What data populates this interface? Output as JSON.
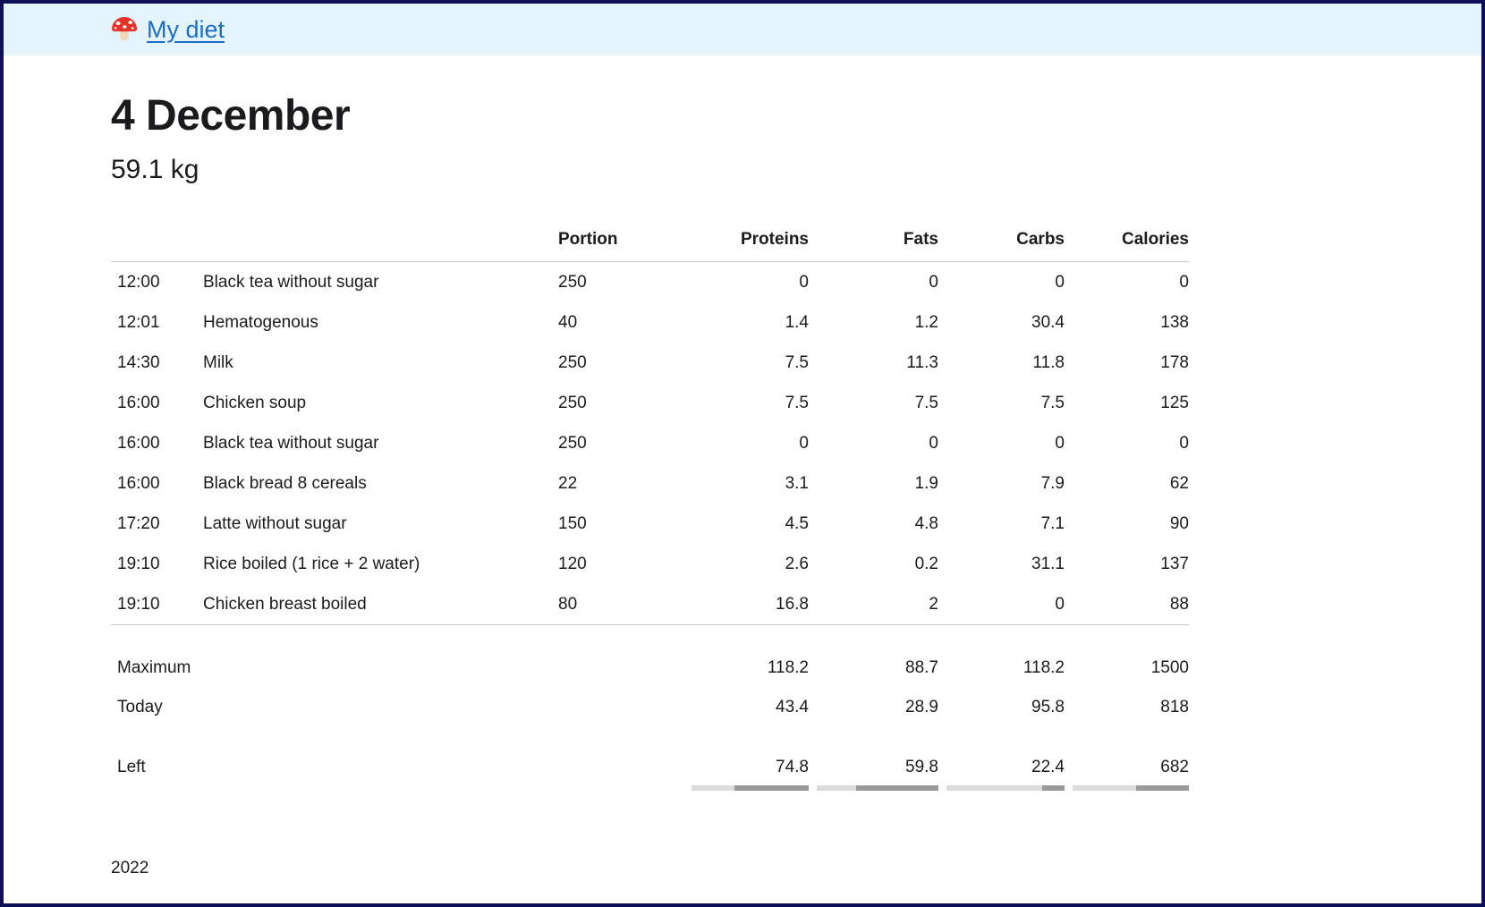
{
  "header": {
    "app_title": "My diet"
  },
  "page": {
    "title": "4 December",
    "weight": "59.1 kg"
  },
  "table": {
    "headers": {
      "portion": "Portion",
      "proteins": "Proteins",
      "fats": "Fats",
      "carbs": "Carbs",
      "calories": "Calories"
    },
    "rows": [
      {
        "time": "12:00",
        "name": "Black tea without sugar",
        "portion": "250",
        "proteins": "0",
        "fats": "0",
        "carbs": "0",
        "calories": "0"
      },
      {
        "time": "12:01",
        "name": "Hematogenous",
        "portion": "40",
        "proteins": "1.4",
        "fats": "1.2",
        "carbs": "30.4",
        "calories": "138"
      },
      {
        "time": "14:30",
        "name": "Milk",
        "portion": "250",
        "proteins": "7.5",
        "fats": "11.3",
        "carbs": "11.8",
        "calories": "178"
      },
      {
        "time": "16:00",
        "name": "Chicken soup",
        "portion": "250",
        "proteins": "7.5",
        "fats": "7.5",
        "carbs": "7.5",
        "calories": "125"
      },
      {
        "time": "16:00",
        "name": "Black tea without sugar",
        "portion": "250",
        "proteins": "0",
        "fats": "0",
        "carbs": "0",
        "calories": "0"
      },
      {
        "time": "16:00",
        "name": "Black bread 8 cereals",
        "portion": "22",
        "proteins": "3.1",
        "fats": "1.9",
        "carbs": "7.9",
        "calories": "62"
      },
      {
        "time": "17:20",
        "name": "Latte without sugar",
        "portion": "150",
        "proteins": "4.5",
        "fats": "4.8",
        "carbs": "7.1",
        "calories": "90"
      },
      {
        "time": "19:10",
        "name": "Rice boiled (1 rice + 2 water)",
        "portion": "120",
        "proteins": "2.6",
        "fats": "0.2",
        "carbs": "31.1",
        "calories": "137"
      },
      {
        "time": "19:10",
        "name": "Chicken breast boiled",
        "portion": "80",
        "proteins": "16.8",
        "fats": "2",
        "carbs": "0",
        "calories": "88"
      }
    ],
    "summary": {
      "maximum": {
        "label": "Maximum",
        "proteins": "118.2",
        "fats": "88.7",
        "carbs": "118.2",
        "calories": "1500"
      },
      "today": {
        "label": "Today",
        "proteins": "43.4",
        "fats": "28.9",
        "carbs": "95.8",
        "calories": "818"
      },
      "left": {
        "label": "Left",
        "proteins": "74.8",
        "fats": "59.8",
        "carbs": "22.4",
        "calories": "682",
        "bars": {
          "proteins": 63.3,
          "fats": 67.4,
          "carbs": 19,
          "calories": 45.5
        }
      }
    }
  },
  "footer": {
    "year": "2022"
  },
  "colors": {
    "accent_border": "#0f0f57",
    "header_bg": "#e4f4fd",
    "link": "#1c6fc5",
    "bar_track": "#dcdcdc",
    "bar_fill": "#999999"
  }
}
